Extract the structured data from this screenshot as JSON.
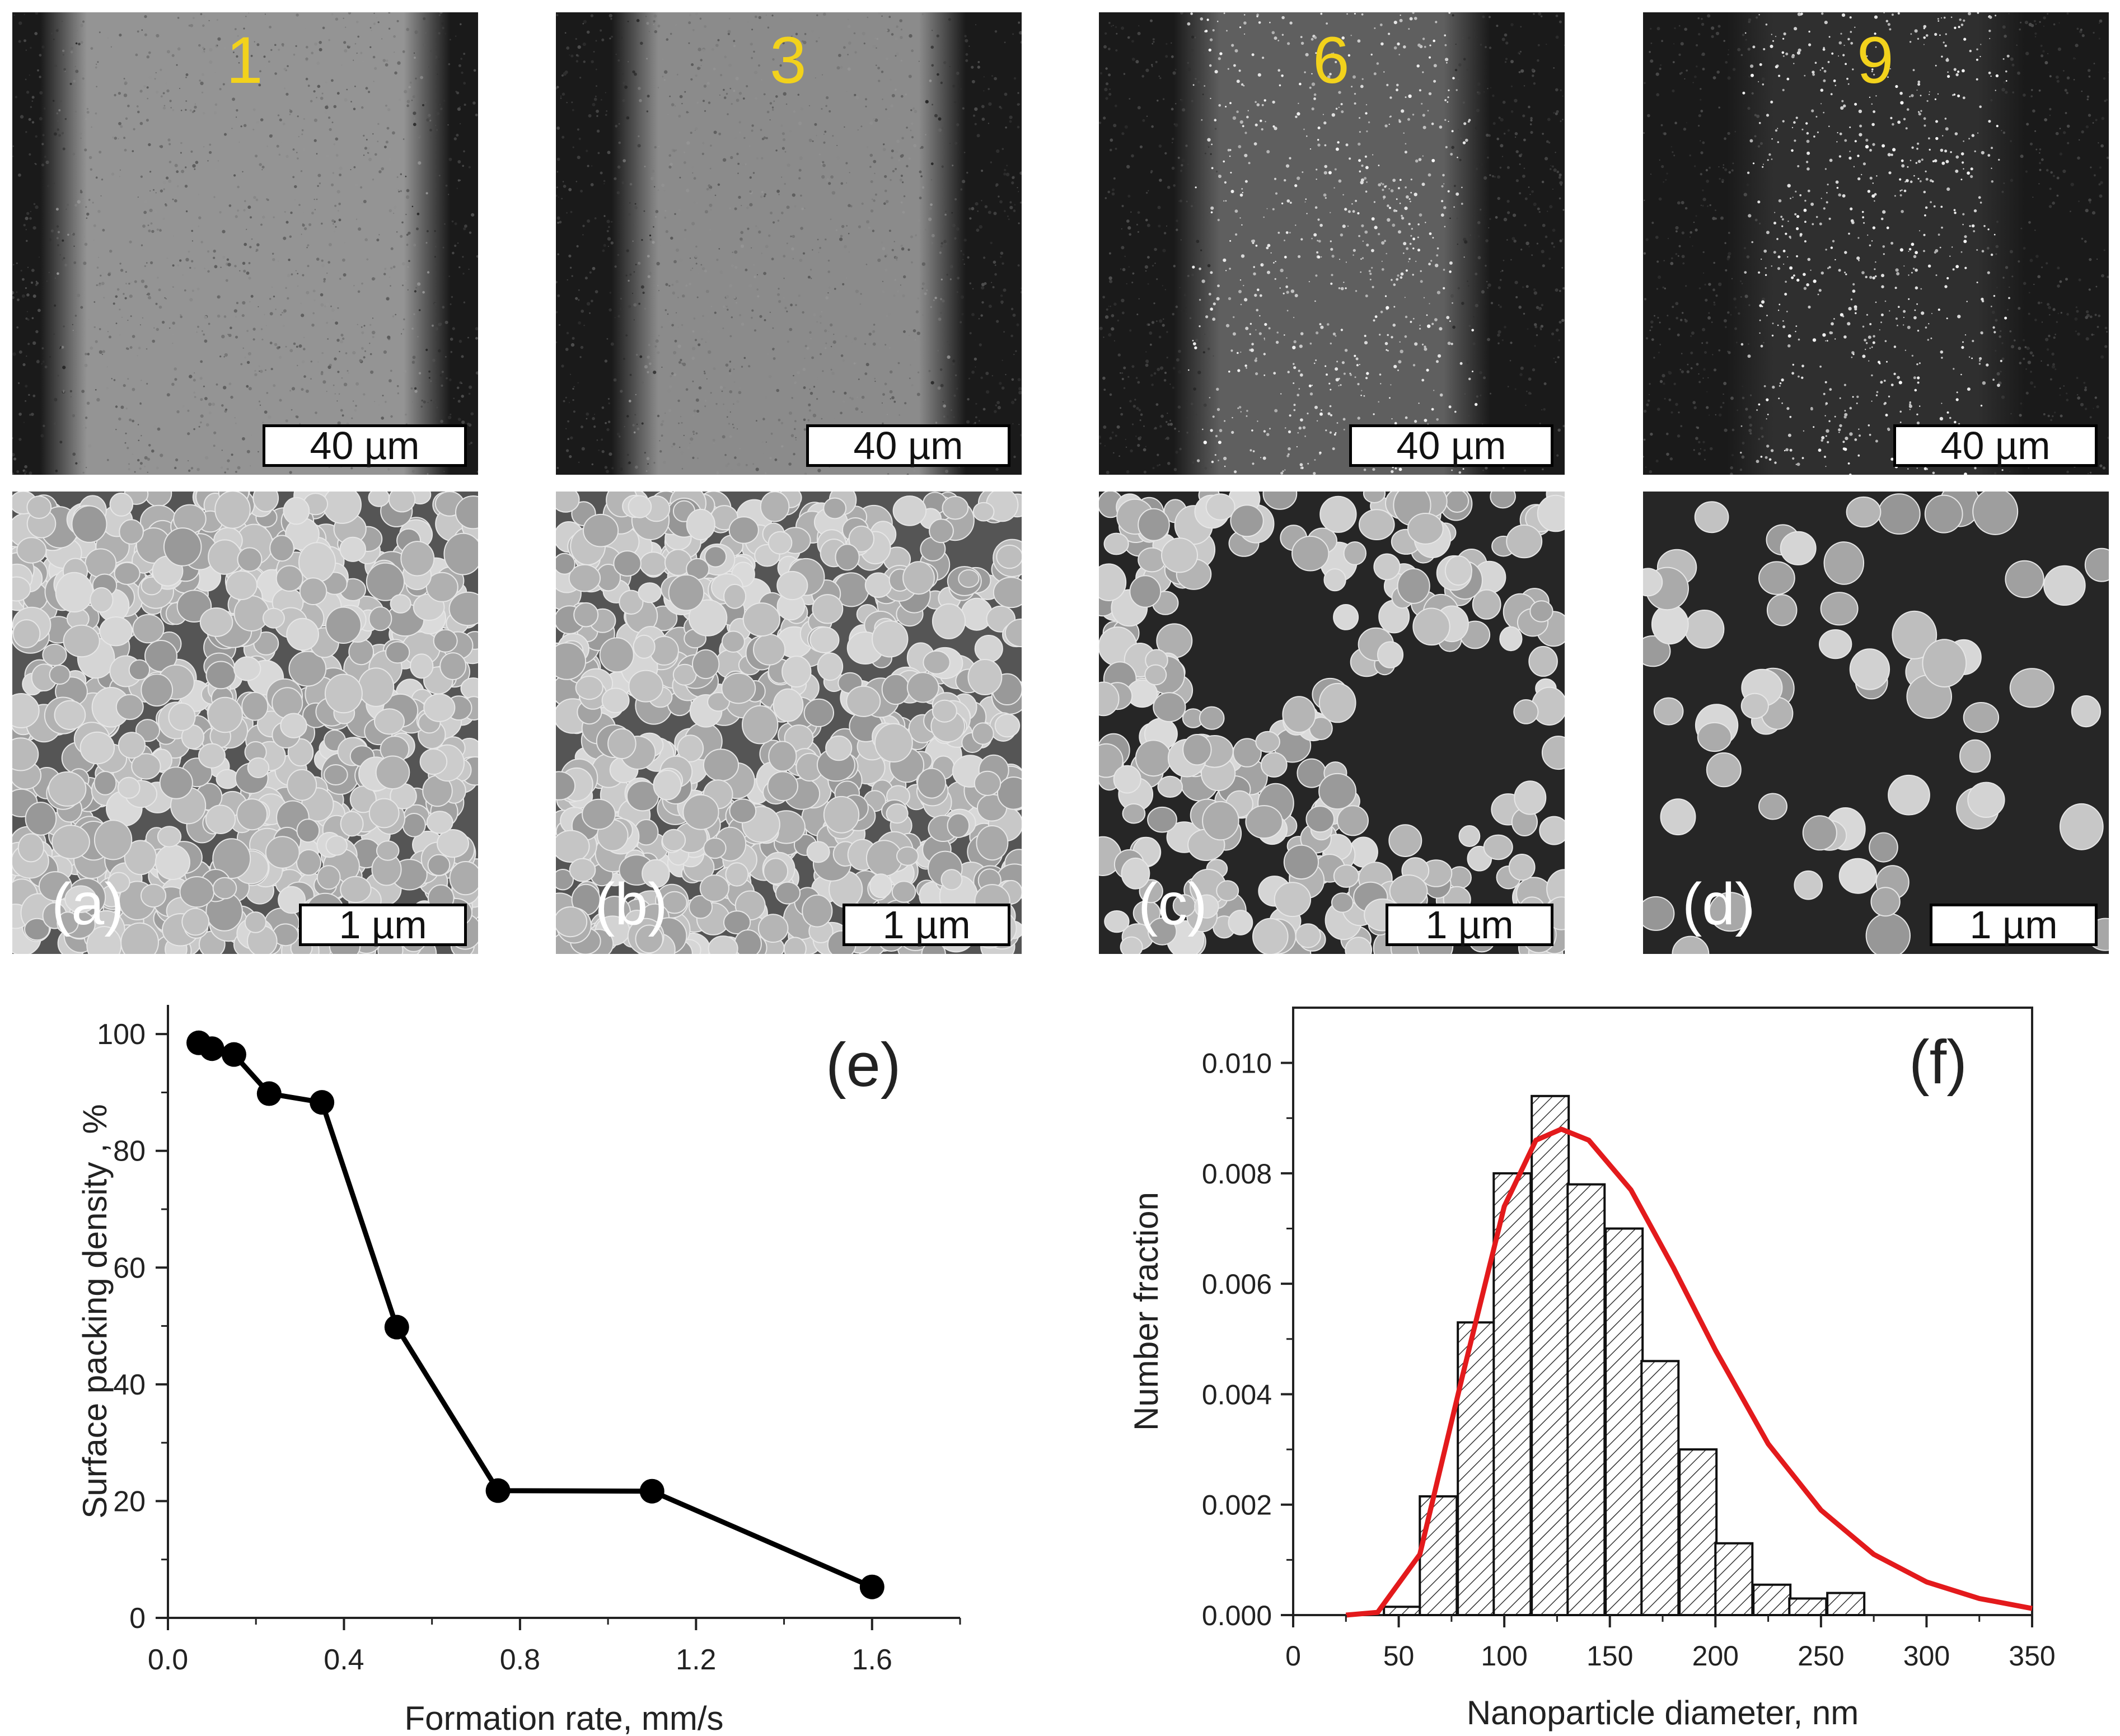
{
  "sem_panels": [
    {
      "id": "1",
      "number_label": "1",
      "letter_label": "(a)",
      "scale_overview": "40 µm",
      "scale_closeup": "1 µm",
      "density": 0.98,
      "band_halfwidth": 0.34
    },
    {
      "id": "3",
      "number_label": "3",
      "letter_label": "(b)",
      "scale_overview": "40 µm",
      "scale_closeup": "1 µm",
      "density": 0.9,
      "band_halfwidth": 0.28
    },
    {
      "id": "6",
      "number_label": "6",
      "letter_label": "(c)",
      "scale_overview": "40 µm",
      "scale_closeup": "1 µm",
      "density": 0.5,
      "band_halfwidth": 0.24
    },
    {
      "id": "9",
      "number_label": "9",
      "letter_label": "(d)",
      "scale_overview": "40 µm",
      "scale_closeup": "1 µm",
      "density": 0.06,
      "band_halfwidth": 0.22
    }
  ],
  "colors": {
    "number_label": "#f2d21c",
    "fit_curve": "#e31a1c",
    "line": "#000000",
    "bar_fill": "#ffffff",
    "sem_dark": "#1e1e1e",
    "sem_particle": "#bdbdbd"
  },
  "chart_data": [
    {
      "panel_label": "(e)",
      "type": "line",
      "title": "",
      "xlabel": "Formation rate, mm/s",
      "ylabel": "Surface packing density , %",
      "xlim": [
        0.0,
        1.8
      ],
      "ylim": [
        0,
        105
      ],
      "xticks": [
        "0.0",
        "0.4",
        "0.8",
        "1.2",
        "1.6"
      ],
      "yticks": [
        "0",
        "20",
        "40",
        "60",
        "80",
        "100"
      ],
      "x": [
        0.07,
        0.1,
        0.15,
        0.23,
        0.35,
        0.52,
        0.75,
        1.1,
        1.6
      ],
      "y": [
        98.5,
        97.5,
        96.5,
        89.8,
        88.3,
        49.8,
        21.8,
        21.7,
        5.3
      ],
      "markers": "filled-circle"
    },
    {
      "panel_label": "(f)",
      "type": "bar",
      "title": "",
      "xlabel": "Nanoparticle diameter, nm",
      "ylabel": "Number fraction",
      "xlim": [
        0,
        350
      ],
      "ylim": [
        0,
        0.011
      ],
      "xticks": [
        "0",
        "50",
        "100",
        "150",
        "200",
        "250",
        "300",
        "350"
      ],
      "yticks": [
        "0.000",
        "0.002",
        "0.004",
        "0.006",
        "0.008",
        "0.010"
      ],
      "bin_width": 17.5,
      "bin_starts": [
        43,
        60,
        78,
        95,
        113,
        130,
        148,
        165,
        183,
        200,
        218,
        235,
        253,
        270,
        288
      ],
      "values": [
        0.00015,
        0.00215,
        0.0053,
        0.008,
        0.0094,
        0.0078,
        0.007,
        0.0046,
        0.003,
        0.0013,
        0.00055,
        0.0003,
        0.0004,
        0.0,
        0.0
      ],
      "fit_curve": {
        "type": "lognormal",
        "x": [
          25,
          40,
          60,
          80,
          100,
          115,
          127,
          140,
          160,
          180,
          200,
          225,
          250,
          275,
          300,
          325,
          350
        ],
        "y": [
          0.0,
          5e-05,
          0.0011,
          0.0043,
          0.0074,
          0.0086,
          0.0088,
          0.0086,
          0.0077,
          0.0063,
          0.0048,
          0.0031,
          0.0019,
          0.0011,
          0.0006,
          0.0003,
          0.00012
        ]
      }
    }
  ]
}
